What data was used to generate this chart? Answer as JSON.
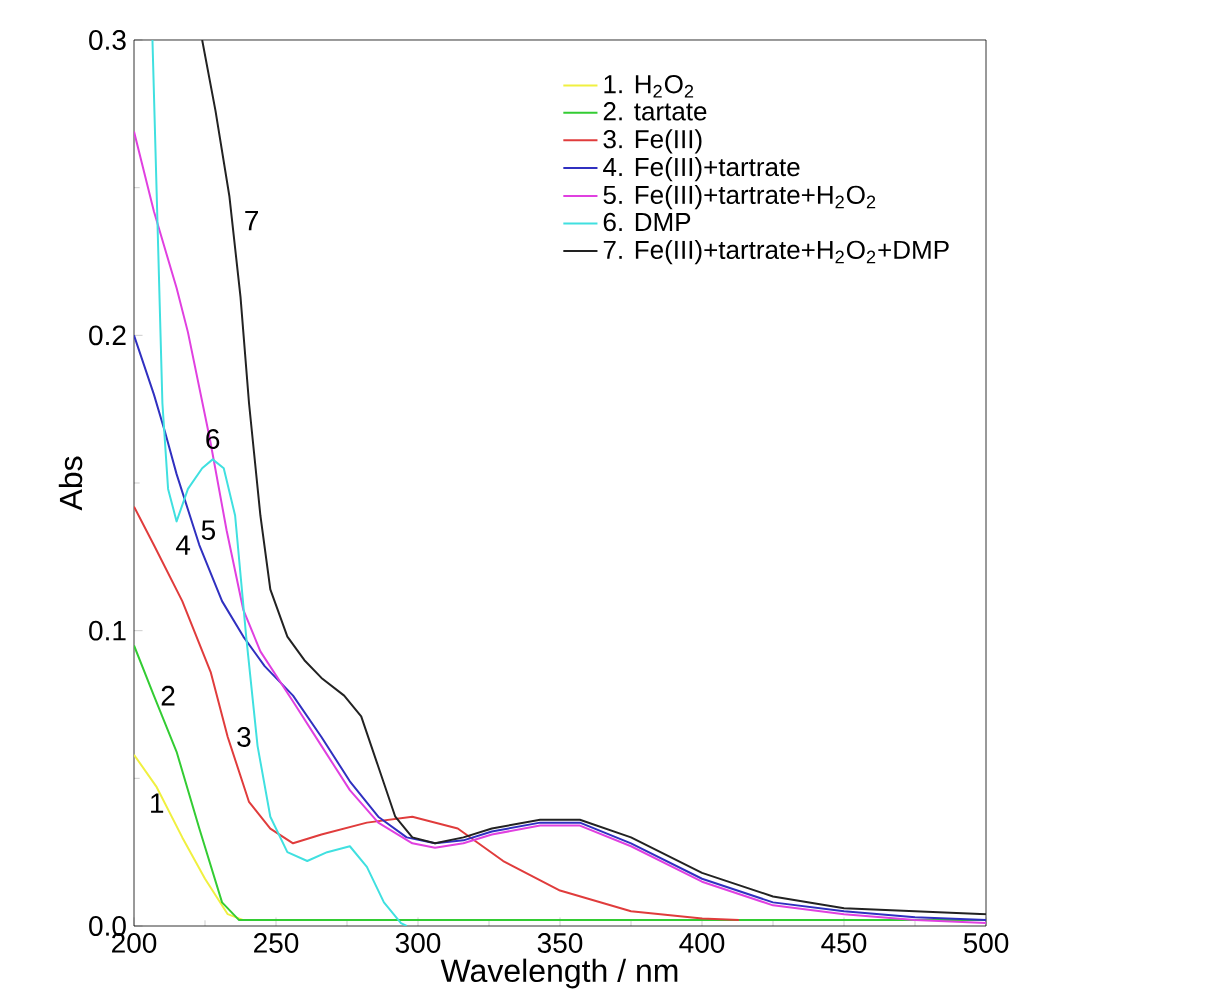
{
  "chart_data": {
    "type": "line",
    "xlabel": "Wavelength / nm",
    "ylabel": "Abs",
    "xlim": [
      200,
      500
    ],
    "ylim": [
      0,
      0.3
    ],
    "xticks": [
      200,
      250,
      300,
      350,
      400,
      450,
      500
    ],
    "yticks": [
      {
        "value": 0,
        "label": "0.0"
      },
      {
        "value": 0.1,
        "label": "0.1"
      },
      {
        "value": 0.2,
        "label": "0.2"
      },
      {
        "value": 0.3,
        "label": "0.3"
      }
    ],
    "legend": "top right",
    "grid": false,
    "marker": "none",
    "line_style": "solid",
    "series": [
      {
        "name": "1. H$_{2}$O$_{2}$",
        "color": "#f0f040",
        "x": [
          200,
          208,
          217,
          225,
          233,
          238.5
        ],
        "values": [
          0.058,
          0.047,
          0.03,
          0.016,
          0.004,
          0.002
        ]
      },
      {
        "name": "2. tartate",
        "color": "#33cc33",
        "x": [
          200,
          207,
          215,
          223,
          231,
          237,
          250,
          300,
          350,
          400,
          450,
          500
        ],
        "values": [
          0.095,
          0.078,
          0.059,
          0.033,
          0.008,
          0.002,
          0.002,
          0.002,
          0.002,
          0.002,
          0.002,
          0.002
        ]
      },
      {
        "name": "3. Fe(III)",
        "color": "#e03c3c",
        "x": [
          200,
          207,
          217,
          227,
          233,
          240.5,
          248,
          256,
          266,
          282,
          298,
          314,
          330,
          350,
          375,
          400,
          413
        ],
        "values": [
          0.142,
          0.129,
          0.11,
          0.086,
          0.064,
          0.042,
          0.033,
          0.028,
          0.031,
          0.035,
          0.037,
          0.033,
          0.022,
          0.012,
          0.005,
          0.0025,
          0.002
        ]
      },
      {
        "name": "4. Fe(III)+tartrate",
        "color": "#3030c0",
        "x": [
          200,
          207,
          211,
          215,
          223,
          231,
          238.5,
          246,
          256,
          266,
          276,
          286,
          296,
          306,
          316,
          326,
          343,
          357,
          375,
          400,
          425,
          450,
          475,
          500
        ],
        "values": [
          0.2,
          0.18,
          0.167,
          0.153,
          0.129,
          0.11,
          0.098,
          0.088,
          0.078,
          0.064,
          0.049,
          0.037,
          0.03,
          0.028,
          0.029,
          0.032,
          0.035,
          0.035,
          0.028,
          0.016,
          0.008,
          0.005,
          0.003,
          0.002
        ]
      },
      {
        "name": "5. Fe(III)+tartrate+H$_{2}$O$_{2}$",
        "color": "#e040e0",
        "x": [
          200,
          207,
          215,
          219,
          226.7,
          232.6,
          238.5,
          244.5,
          256,
          266,
          276,
          286,
          298,
          306,
          316,
          326,
          343,
          357,
          375,
          400,
          425,
          450,
          475,
          500
        ],
        "values": [
          0.269,
          0.242,
          0.216,
          0.201,
          0.165,
          0.134,
          0.107,
          0.093,
          0.076,
          0.061,
          0.046,
          0.035,
          0.028,
          0.0265,
          0.028,
          0.031,
          0.034,
          0.034,
          0.027,
          0.015,
          0.007,
          0.004,
          0.002,
          0.001
        ]
      },
      {
        "name": "6. DMP",
        "color": "#40e0e0",
        "x": [
          206.5,
          208.5,
          210,
          212,
          215,
          219,
          224,
          227.7,
          231.6,
          235.6,
          239.5,
          243.5,
          248,
          254,
          261,
          268,
          276,
          282,
          288,
          294,
          296
        ],
        "values": [
          0.3,
          0.23,
          0.177,
          0.148,
          0.137,
          0.148,
          0.155,
          0.158,
          0.155,
          0.139,
          0.098,
          0.061,
          0.037,
          0.025,
          0.022,
          0.025,
          0.027,
          0.02,
          0.008,
          0.001,
          0.0
        ]
      },
      {
        "name": "7. Fe(III)+tartrate+H$_{2}$O$_{2}$+DMP",
        "color": "#222222",
        "x": [
          224,
          228.7,
          233.6,
          237.5,
          240.5,
          244.5,
          248,
          254,
          260,
          266,
          274,
          280,
          286,
          292,
          298,
          306,
          316,
          326,
          343,
          357,
          375,
          400,
          425,
          450,
          475,
          500
        ],
        "values": [
          0.3,
          0.276,
          0.247,
          0.213,
          0.177,
          0.139,
          0.114,
          0.098,
          0.09,
          0.084,
          0.078,
          0.071,
          0.054,
          0.037,
          0.03,
          0.028,
          0.03,
          0.033,
          0.036,
          0.036,
          0.03,
          0.018,
          0.01,
          0.006,
          0.005,
          0.004
        ]
      }
    ],
    "annotations": [
      {
        "text": "1",
        "x": 208,
        "y": 0.047
      },
      {
        "text": "2",
        "x": 207,
        "y": 0.078
      },
      {
        "text": "3",
        "x": 233,
        "y": 0.064
      },
      {
        "text": "4",
        "x": 223,
        "y": 0.129
      },
      {
        "text": "5",
        "x": 232.6,
        "y": 0.134
      },
      {
        "text": "6",
        "x": 227.7,
        "y": 0.158
      },
      {
        "text": "7",
        "x": 233.6,
        "y": 0.247
      }
    ]
  }
}
